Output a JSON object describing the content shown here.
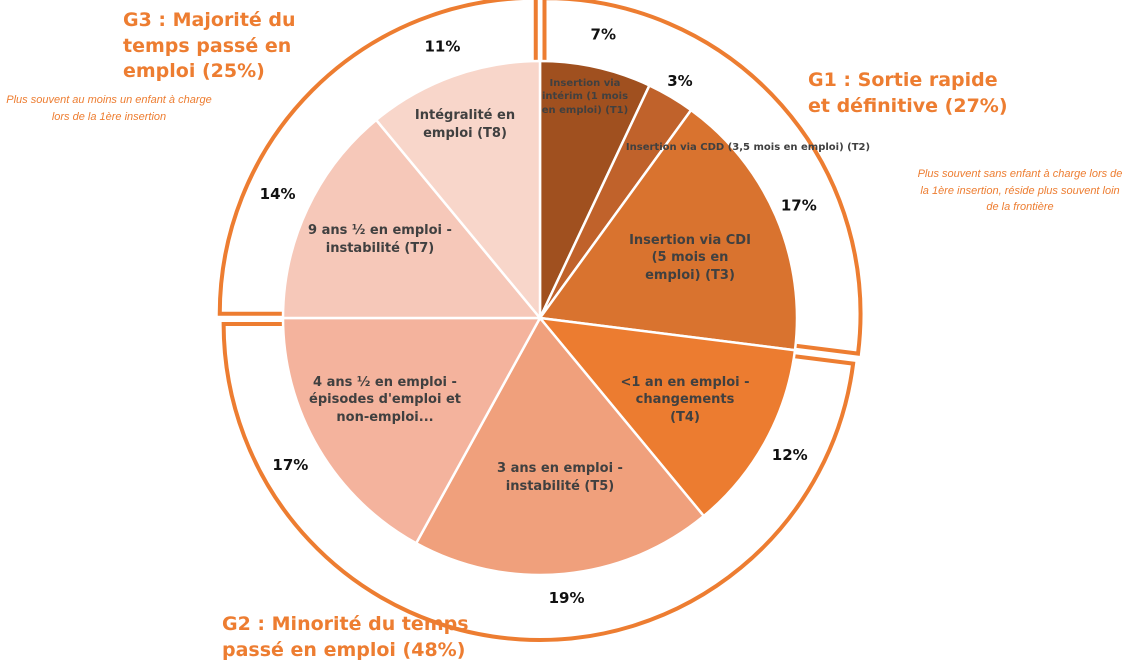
{
  "chart_data": {
    "type": "pie",
    "categories": [
      "Insertion via intérim (1 mois en emploi) (T1)",
      "Insertion via CDD (3,5 mois en emploi) (T2)",
      "Insertion via CDI (5 mois en emploi) (T3)",
      "<1 an en emploi - changements (T4)",
      "3 ans en emploi - instabilité (T5)",
      "4 ans ½ en emploi - épisodes d'emploi et non-emploi...",
      "9 ans ½ en emploi - instabilité (T7)",
      "Intégralité en emploi (T8)"
    ],
    "values": [
      7,
      3,
      17,
      12,
      19,
      17,
      14,
      11
    ],
    "value_labels": [
      "7%",
      "3%",
      "17%",
      "12%",
      "19%",
      "17%",
      "14%",
      "11%"
    ],
    "colors": [
      "#a0501f",
      "#c0622b",
      "#d9732f",
      "#ec7c30",
      "#f0a07c",
      "#f4b39d",
      "#f6c8b9",
      "#f8d6ca"
    ],
    "groups": [
      {
        "label": "G1 : Sortie rapide et définitive (27%)",
        "note": "Plus souvent sans enfant à charge lors de la 1ère insertion, réside plus souvent loin de la frontière"
      },
      {
        "label": "G2 : Minorité du temps passé en emploi (48%)"
      },
      {
        "label": "G3 : Majorité du temps passé en emploi (25%)",
        "note": "Plus souvent au moins un enfant à charge lors de la 1ère insertion"
      }
    ]
  }
}
